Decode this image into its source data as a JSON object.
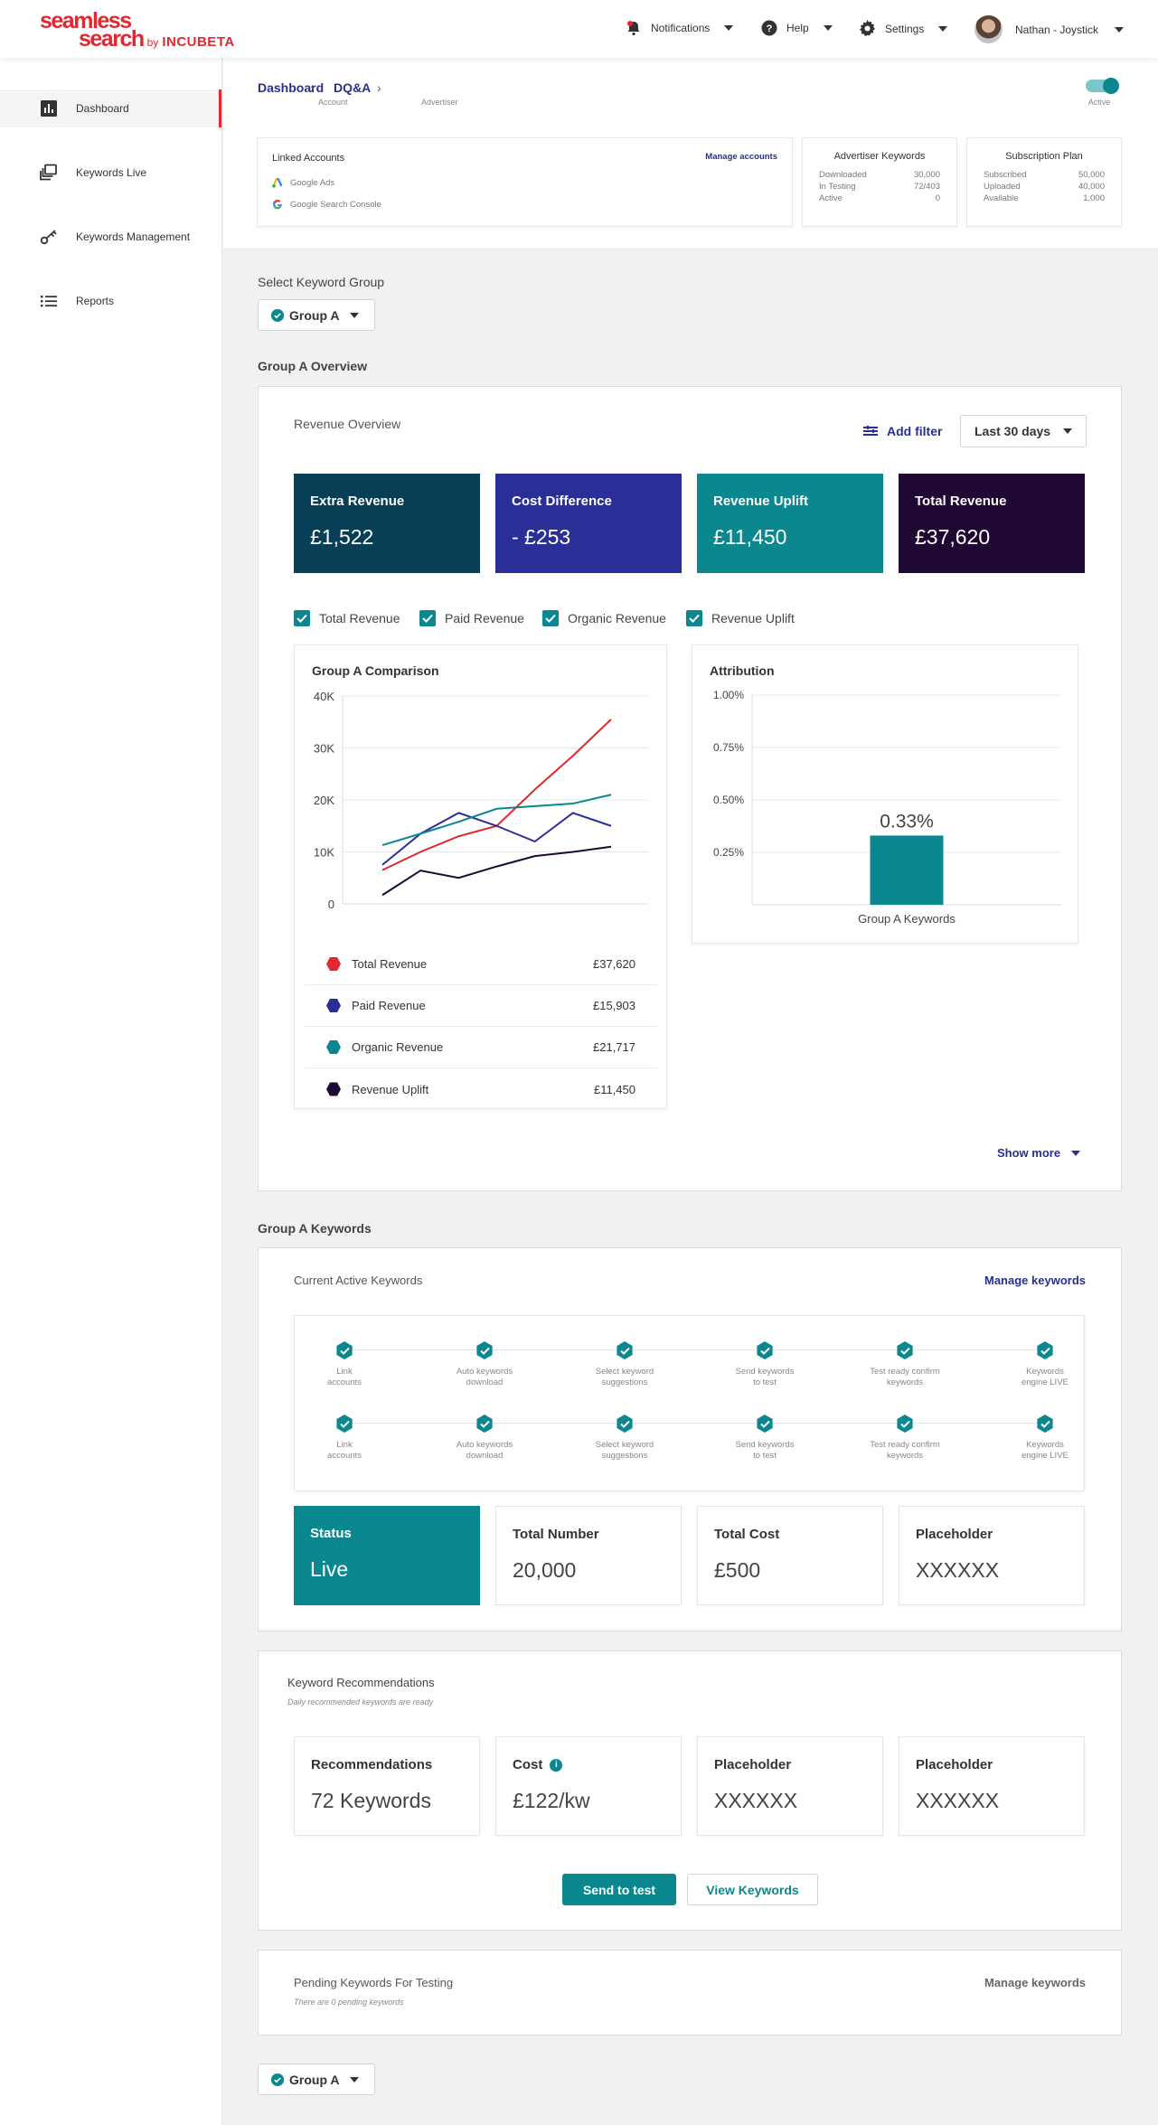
{
  "brand": {
    "word1": "seamless",
    "word2": "search",
    "by": "by",
    "company": "INCUBETA",
    "color": "#e3262f"
  },
  "topnav": {
    "notifications": "Notifications",
    "help": "Help",
    "settings": "Settings",
    "user": "Nathan - Joystick"
  },
  "sidebar": {
    "items": [
      {
        "label": "Dashboard",
        "icon": "bar-chart-icon",
        "active": true
      },
      {
        "label": "Keywords Live",
        "icon": "layers-icon"
      },
      {
        "label": "Keywords Management",
        "icon": "key-icon"
      },
      {
        "label": "Reports",
        "icon": "list-icon"
      }
    ]
  },
  "breadcrumb": {
    "items": [
      {
        "label": "Dashboard",
        "sub": "Account"
      },
      {
        "label": "DQ&A",
        "sub": "Advertiser"
      }
    ]
  },
  "toggle": {
    "label": "Active",
    "on": true
  },
  "linked_accounts": {
    "title": "Linked Accounts",
    "manage": "Manage accounts",
    "items": [
      "Google Ads",
      "Google Search Console"
    ]
  },
  "advertiser_keywords": {
    "title": "Advertiser Keywords",
    "rows": [
      {
        "k": "Downloaded",
        "v": "30,000"
      },
      {
        "k": "In Testing",
        "v": "72/403"
      },
      {
        "k": "Active",
        "v": "0"
      }
    ]
  },
  "subscription": {
    "title": "Subscription Plan",
    "rows": [
      {
        "k": "Subscribed",
        "v": "50,000"
      },
      {
        "k": "Uploaded",
        "v": "40,000"
      },
      {
        "k": "Available",
        "v": "1,000"
      }
    ]
  },
  "select_group": {
    "label": "Select Keyword Group",
    "value": "Group A"
  },
  "overview": {
    "title": "Group A Overview",
    "subtitle": "Revenue Overview",
    "add_filter": "Add filter",
    "range": "Last 30 days",
    "stats": [
      {
        "title": "Extra Revenue",
        "value": "£1,522",
        "color": "#073f57"
      },
      {
        "title": "Cost Difference",
        "value": "- £253",
        "color": "#2a2f98"
      },
      {
        "title": "Revenue Uplift",
        "value": "£11,450",
        "color": "#0b8790"
      },
      {
        "title": "Total Revenue",
        "value": "£37,620",
        "color": "#1f0833"
      }
    ],
    "checks": [
      "Total Revenue",
      "Paid Revenue",
      "Organic Revenue",
      "Revenue Uplift"
    ],
    "legend": [
      {
        "name": "Total Revenue",
        "value": "£37,620",
        "color": "#e3262f"
      },
      {
        "name": "Paid Revenue",
        "value": "£15,903",
        "color": "#2a2f98"
      },
      {
        "name": "Organic Revenue",
        "value": "£21,717",
        "color": "#0b8790"
      },
      {
        "name": "Revenue Uplift",
        "value": "£11,450",
        "color": "#1f0833"
      }
    ],
    "show_more": "Show more"
  },
  "chart_data": [
    {
      "type": "line",
      "title": "Group A Comparison",
      "x": [
        1,
        2,
        3,
        4,
        5,
        6,
        7
      ],
      "ylim": [
        0,
        40000
      ],
      "yticks": [
        "0",
        "10K",
        "20K",
        "30K",
        "40K"
      ],
      "grid": true,
      "series": [
        {
          "name": "Total Revenue",
          "color": "#e3262f",
          "values": [
            6500,
            10000,
            13000,
            15000,
            22000,
            28500,
            35500
          ]
        },
        {
          "name": "Paid Revenue",
          "color": "#2a2f98",
          "values": [
            7500,
            13500,
            17500,
            15000,
            12000,
            17500,
            15000
          ]
        },
        {
          "name": "Organic Revenue",
          "color": "#0b8790",
          "values": [
            11300,
            13500,
            15800,
            18300,
            18800,
            19300,
            21000
          ]
        },
        {
          "name": "Revenue Uplift",
          "color": "#1f0833",
          "values": [
            1700,
            6400,
            5000,
            7200,
            9200,
            10000,
            11000
          ]
        }
      ]
    },
    {
      "type": "bar",
      "title": "Attribution",
      "categories": [
        "Group A Keywords"
      ],
      "values": [
        0.33
      ],
      "labels": [
        "0.33%"
      ],
      "ylim": [
        0,
        1.0
      ],
      "yticks": [
        "0.25%",
        "0.50%",
        "0.75%",
        "1.00%"
      ],
      "color": "#0b8790"
    }
  ],
  "keywords": {
    "title": "Group A Keywords",
    "subtitle": "Current Active Keywords",
    "manage": "Manage keywords",
    "steps": [
      [
        "Link",
        "accounts"
      ],
      [
        "Auto keywords",
        "download"
      ],
      [
        "Select keyword",
        "suggestions"
      ],
      [
        "Send keywords",
        "to test"
      ],
      [
        "Test ready confirm",
        "keywords"
      ],
      [
        "Keywords",
        "engine LIVE"
      ]
    ],
    "stats": [
      {
        "title": "Status",
        "value": "Live"
      },
      {
        "title": "Total Number",
        "value": "20,000"
      },
      {
        "title": "Total Cost",
        "value": "£500"
      },
      {
        "title": "Placeholder",
        "value": "XXXXXX"
      }
    ]
  },
  "recommendations": {
    "title": "Keyword Recommendations",
    "subtitle": "Daily recommended keywords are ready",
    "stats": [
      {
        "title": "Recommendations",
        "value": "72 Keywords"
      },
      {
        "title": "Cost",
        "value": "£122/kw"
      },
      {
        "title": "Placeholder",
        "value": "XXXXXX"
      },
      {
        "title": "Placeholder",
        "value": "XXXXXX"
      }
    ],
    "send": "Send to test",
    "view": "View Keywords"
  },
  "pending": {
    "title": "Pending Keywords For Testing",
    "subtitle": "There are 0 pending keywords",
    "manage": "Manage keywords"
  },
  "bottom_group": {
    "value": "Group A"
  }
}
